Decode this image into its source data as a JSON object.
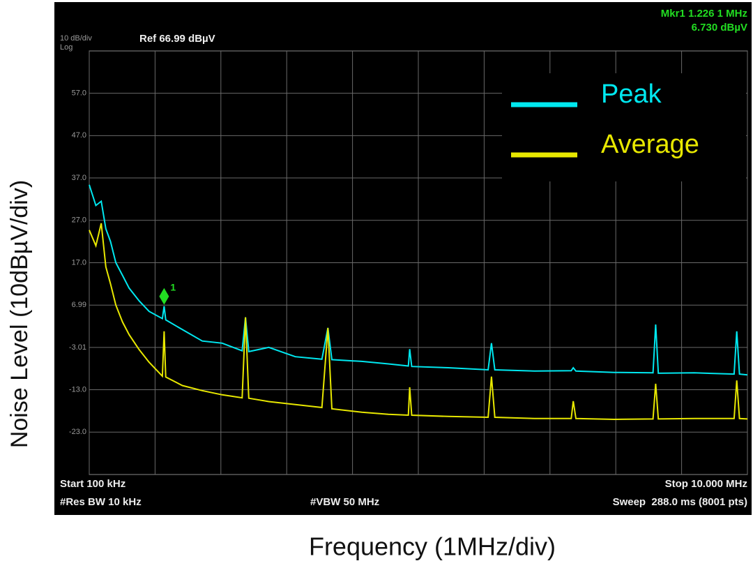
{
  "chart_data": {
    "type": "line",
    "x_title": "Frequency (1MHz/div)",
    "y_title": "Noise Level (10dBµV/div)",
    "scale_label": "10 dB/div",
    "scale_mode": "Log",
    "ref_label": "Ref 66.99 dBµV",
    "marker_readout": [
      "Mkr1 1.226 1 MHz",
      "6.730 dBµV"
    ],
    "marker": {
      "label": "1",
      "x": 1.2261,
      "y": 6.73,
      "color": "#22dd22"
    },
    "footer": {
      "start": "Start 100 kHz",
      "stop": "Stop 10.000 MHz",
      "rbw": "#Res BW 10 kHz",
      "vbw": "#VBW 50 MHz",
      "sweep": "Sweep  288.0 ms (8001 pts)"
    },
    "xlim": [
      0.1,
      10
    ],
    "xticks": [
      0.1,
      1.09,
      2.08,
      3.07,
      4.06,
      5.05,
      6.04,
      7.03,
      8.02,
      9.01,
      10
    ],
    "ylim": [
      -33.01,
      66.99
    ],
    "yticks": [
      {
        "value": 57,
        "label": "57.0"
      },
      {
        "value": 47,
        "label": "47.0"
      },
      {
        "value": 37,
        "label": "37.0"
      },
      {
        "value": 27,
        "label": "27.0"
      },
      {
        "value": 17,
        "label": "17.0"
      },
      6.99,
      -3.01,
      {
        "value": -13,
        "label": "-13.0"
      },
      {
        "value": -23,
        "label": "-23.0"
      }
    ],
    "grid": true,
    "x": [
      0.1,
      0.2,
      0.28,
      0.35,
      0.42,
      0.5,
      0.6,
      0.7,
      0.85,
      1.0,
      1.2,
      1.2261,
      1.25,
      1.5,
      1.8,
      2.1,
      2.4,
      2.45,
      2.5,
      2.8,
      3.2,
      3.6,
      3.69,
      3.75,
      4.2,
      4.6,
      4.9,
      4.92,
      4.95,
      5.5,
      6.1,
      6.15,
      6.2,
      6.8,
      7.35,
      7.38,
      7.42,
      8.0,
      8.58,
      8.62,
      8.66,
      9.2,
      9.8,
      9.84,
      9.88,
      10.0
    ],
    "series": [
      {
        "name": "Peak",
        "color": "#00e8f0",
        "values": [
          35.4,
          30.5,
          31.5,
          25,
          22,
          17,
          14,
          11,
          8,
          5.5,
          3.8,
          6.73,
          3.5,
          1.2,
          -1.5,
          -2.0,
          -3.8,
          4.1,
          -4.0,
          -3.0,
          -5.2,
          -5.8,
          1.6,
          -5.9,
          -6.3,
          -6.9,
          -7.4,
          -3.4,
          -7.5,
          -7.8,
          -8.3,
          -2.0,
          -8.3,
          -8.6,
          -8.5,
          -7.8,
          -8.6,
          -8.9,
          -9.0,
          2.4,
          -9.1,
          -9.0,
          -9.3,
          0.8,
          -9.3,
          -9.5
        ]
      },
      {
        "name": "Average",
        "color": "#e8e800",
        "values": [
          24.7,
          21,
          26.3,
          16,
          12,
          7,
          3,
          0,
          -3.5,
          -6.5,
          -9.8,
          0.8,
          -10,
          -12,
          -13.2,
          -14.2,
          -14.9,
          4.1,
          -15,
          -15.8,
          -16.5,
          -17.2,
          1.6,
          -17.5,
          -18.3,
          -18.8,
          -19.0,
          -12.4,
          -19.0,
          -19.3,
          -19.5,
          -9.9,
          -19.5,
          -19.8,
          -19.8,
          -15.7,
          -19.8,
          -20.0,
          -19.9,
          -11.6,
          -19.9,
          -19.8,
          -19.8,
          -10.8,
          -19.8,
          -19.9
        ]
      }
    ]
  }
}
